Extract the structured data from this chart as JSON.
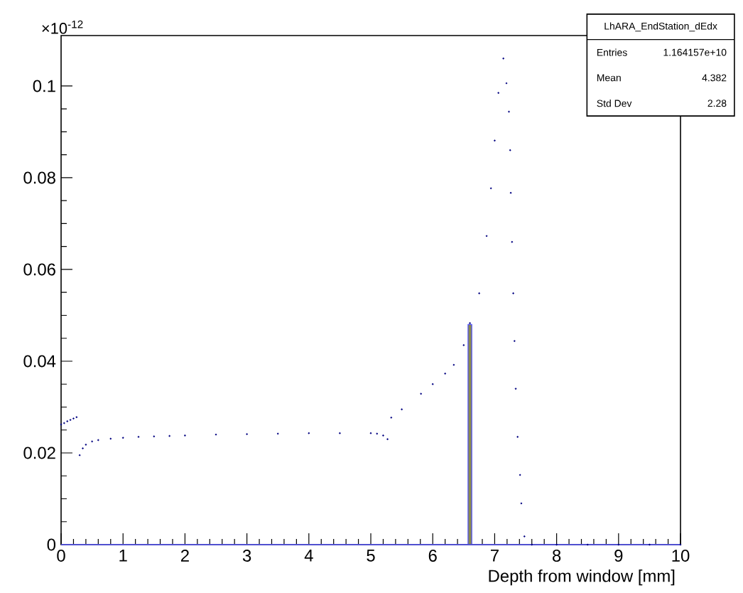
{
  "chart_data": {
    "type": "scatter",
    "xlabel": "Depth from window [mm]",
    "xlim": [
      0,
      10
    ],
    "ylim": [
      0,
      0.111
    ],
    "xticks": [
      0,
      1,
      2,
      3,
      4,
      5,
      6,
      7,
      8,
      9,
      10
    ],
    "yticks": [
      0,
      0.02,
      0.04,
      0.06,
      0.08,
      0.1
    ],
    "annotations": [
      "×10$^{-12}$",
      "LhARA_EndStation_dEdx",
      "Entries",
      "1.164157e+10",
      "Mean",
      "4.382",
      "Std Dev",
      "2.28"
    ],
    "series": [
      {
        "color": "#000080",
        "x": [
          0,
          0.05,
          0.1,
          0.15,
          0.2,
          0.25,
          0.3,
          0.35,
          0.4,
          0.5,
          0.6,
          0.8,
          1.0,
          1.25,
          1.5,
          1.75,
          2.0,
          2.5,
          3.0,
          3.5,
          4.0,
          4.5,
          5.0,
          5.1,
          5.2,
          5.27,
          5.33,
          5.5,
          5.81,
          6.0,
          6.2,
          6.34,
          6.5,
          6.6,
          6.75,
          6.87,
          6.94,
          7.0,
          7.06,
          7.14,
          7.19,
          7.23,
          7.25,
          7.26,
          7.28,
          7.3,
          7.32,
          7.34,
          7.37,
          7.41,
          7.43,
          7.48,
          7.6,
          8.0,
          8.5,
          9.0,
          9.5,
          10.0
        ],
        "values": [
          0.0262,
          0.0265,
          0.0269,
          0.0272,
          0.0275,
          0.0278,
          0.0195,
          0.021,
          0.0218,
          0.0225,
          0.0228,
          0.0231,
          0.0233,
          0.0235,
          0.0236,
          0.0237,
          0.0238,
          0.024,
          0.0241,
          0.0242,
          0.0243,
          0.0243,
          0.0243,
          0.0242,
          0.0238,
          0.023,
          0.0277,
          0.0295,
          0.0329,
          0.035,
          0.0373,
          0.0392,
          0.0435,
          0.0483,
          0.0548,
          0.0673,
          0.0777,
          0.0881,
          0.0985,
          0.106,
          0.1006,
          0.0944,
          0.086,
          0.0767,
          0.066,
          0.0548,
          0.0444,
          0.034,
          0.0235,
          0.0152,
          0.009,
          0.0018,
          0,
          0,
          0,
          0,
          0,
          0
        ]
      },
      {
        "type": "bar",
        "color": "#8a8a4f",
        "x": [
          6.6
        ],
        "values": [
          0.048
        ]
      },
      {
        "type": "line",
        "color": "#5050d0",
        "x": [
          0,
          10
        ],
        "values": [
          0,
          0
        ]
      }
    ]
  }
}
